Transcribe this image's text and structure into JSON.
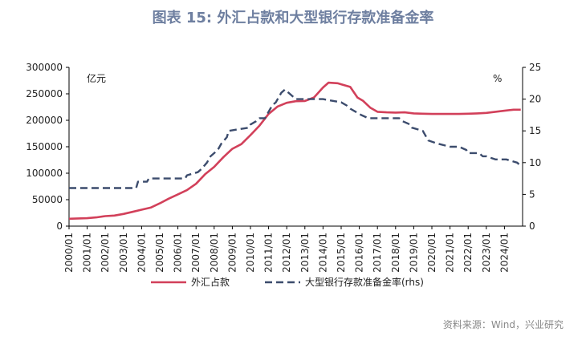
{
  "title": "图表 15: 外汇占款和大型银行存款准备金率",
  "source": "资料来源：Wind，兴业研究",
  "chart_data": {
    "type": "line",
    "left_unit": "亿元",
    "right_unit": "%",
    "left_ylim": [
      0,
      300000
    ],
    "right_ylim": [
      0,
      25
    ],
    "left_ticks": [
      "0",
      "50000",
      "100000",
      "150000",
      "200000",
      "250000",
      "300000"
    ],
    "right_ticks": [
      "0",
      "5",
      "10",
      "15",
      "20",
      "25"
    ],
    "x_range": [
      2000.0,
      2025.0
    ],
    "x_ticks": [
      "2000/01",
      "2001/01",
      "2002/01",
      "2003/01",
      "2004/01",
      "2005/01",
      "2006/01",
      "2007/01",
      "2008/01",
      "2009/01",
      "2010/01",
      "2011/01",
      "2012/01",
      "2013/01",
      "2014/01",
      "2015/01",
      "2016/01",
      "2017/01",
      "2018/01",
      "2019/01",
      "2020/01",
      "2021/01",
      "2022/01",
      "2023/01",
      "2024/01"
    ],
    "grid": false,
    "legend_position": "bottom",
    "series": [
      {
        "name": "外汇占款",
        "axis": "left",
        "color": "#d2405a",
        "dash": false,
        "x": [
          2000.0,
          2000.5,
          2001.0,
          2001.5,
          2002.0,
          2002.5,
          2003.0,
          2003.5,
          2004.0,
          2004.5,
          2005.0,
          2005.5,
          2006.0,
          2006.5,
          2007.0,
          2007.5,
          2008.0,
          2008.5,
          2009.0,
          2009.5,
          2010.0,
          2010.5,
          2011.0,
          2011.5,
          2012.0,
          2012.5,
          2013.0,
          2013.5,
          2014.0,
          2014.3,
          2014.8,
          2015.0,
          2015.5,
          2015.9,
          2016.2,
          2016.6,
          2017.0,
          2017.5,
          2018.0,
          2018.5,
          2019.0,
          2019.5,
          2020.0,
          2020.5,
          2021.0,
          2021.5,
          2022.0,
          2022.5,
          2023.0,
          2023.5,
          2024.0,
          2024.5,
          2024.9
        ],
        "values": [
          14000,
          14500,
          15000,
          16500,
          19000,
          20000,
          23000,
          27000,
          31000,
          35000,
          43000,
          52000,
          60000,
          68000,
          80000,
          98000,
          112000,
          130000,
          146000,
          155000,
          172000,
          190000,
          212000,
          226000,
          233000,
          236000,
          236500,
          243000,
          262000,
          271000,
          270000,
          268000,
          263000,
          243000,
          237000,
          224000,
          216000,
          215000,
          214500,
          215000,
          213000,
          212500,
          212000,
          212000,
          212000,
          212000,
          212500,
          213000,
          214000,
          216000,
          218000,
          220000,
          220000
        ]
      },
      {
        "name": "大型银行存款准备金率(rhs)",
        "axis": "right",
        "color": "#3c4c6d",
        "dash": true,
        "x": [
          2000.0,
          2003.7,
          2003.8,
          2004.3,
          2004.4,
          2006.4,
          2006.5,
          2007.1,
          2007.3,
          2007.6,
          2007.8,
          2008.2,
          2008.4,
          2008.7,
          2008.8,
          2009.9,
          2010.0,
          2010.3,
          2010.5,
          2010.8,
          2011.0,
          2011.2,
          2011.4,
          2011.7,
          2011.9,
          2012.1,
          2012.3,
          2012.5,
          2014.0,
          2015.0,
          2015.3,
          2015.5,
          2015.8,
          2016.1,
          2016.5,
          2018.2,
          2018.4,
          2018.8,
          2018.9,
          2019.5,
          2019.7,
          2019.8,
          2020.3,
          2021.0,
          2021.5,
          2021.9,
          2022.0,
          2022.6,
          2022.8,
          2023.0,
          2023.5,
          2023.8,
          2024.1,
          2024.7,
          2024.9
        ],
        "values": [
          6,
          6,
          7,
          7,
          7.5,
          7.5,
          8,
          8.5,
          9,
          10,
          11,
          12,
          13,
          14,
          15,
          15.5,
          16,
          16.5,
          17,
          17,
          18,
          19,
          19.5,
          21,
          21.5,
          21,
          20.5,
          20,
          20,
          19.5,
          19,
          18.5,
          18,
          17.5,
          17,
          17,
          16.5,
          16,
          15.5,
          15,
          14,
          13.5,
          13,
          12.5,
          12.5,
          12,
          11.5,
          11.5,
          11,
          11,
          10.5,
          10.5,
          10.5,
          10,
          9.5
        ]
      }
    ]
  }
}
